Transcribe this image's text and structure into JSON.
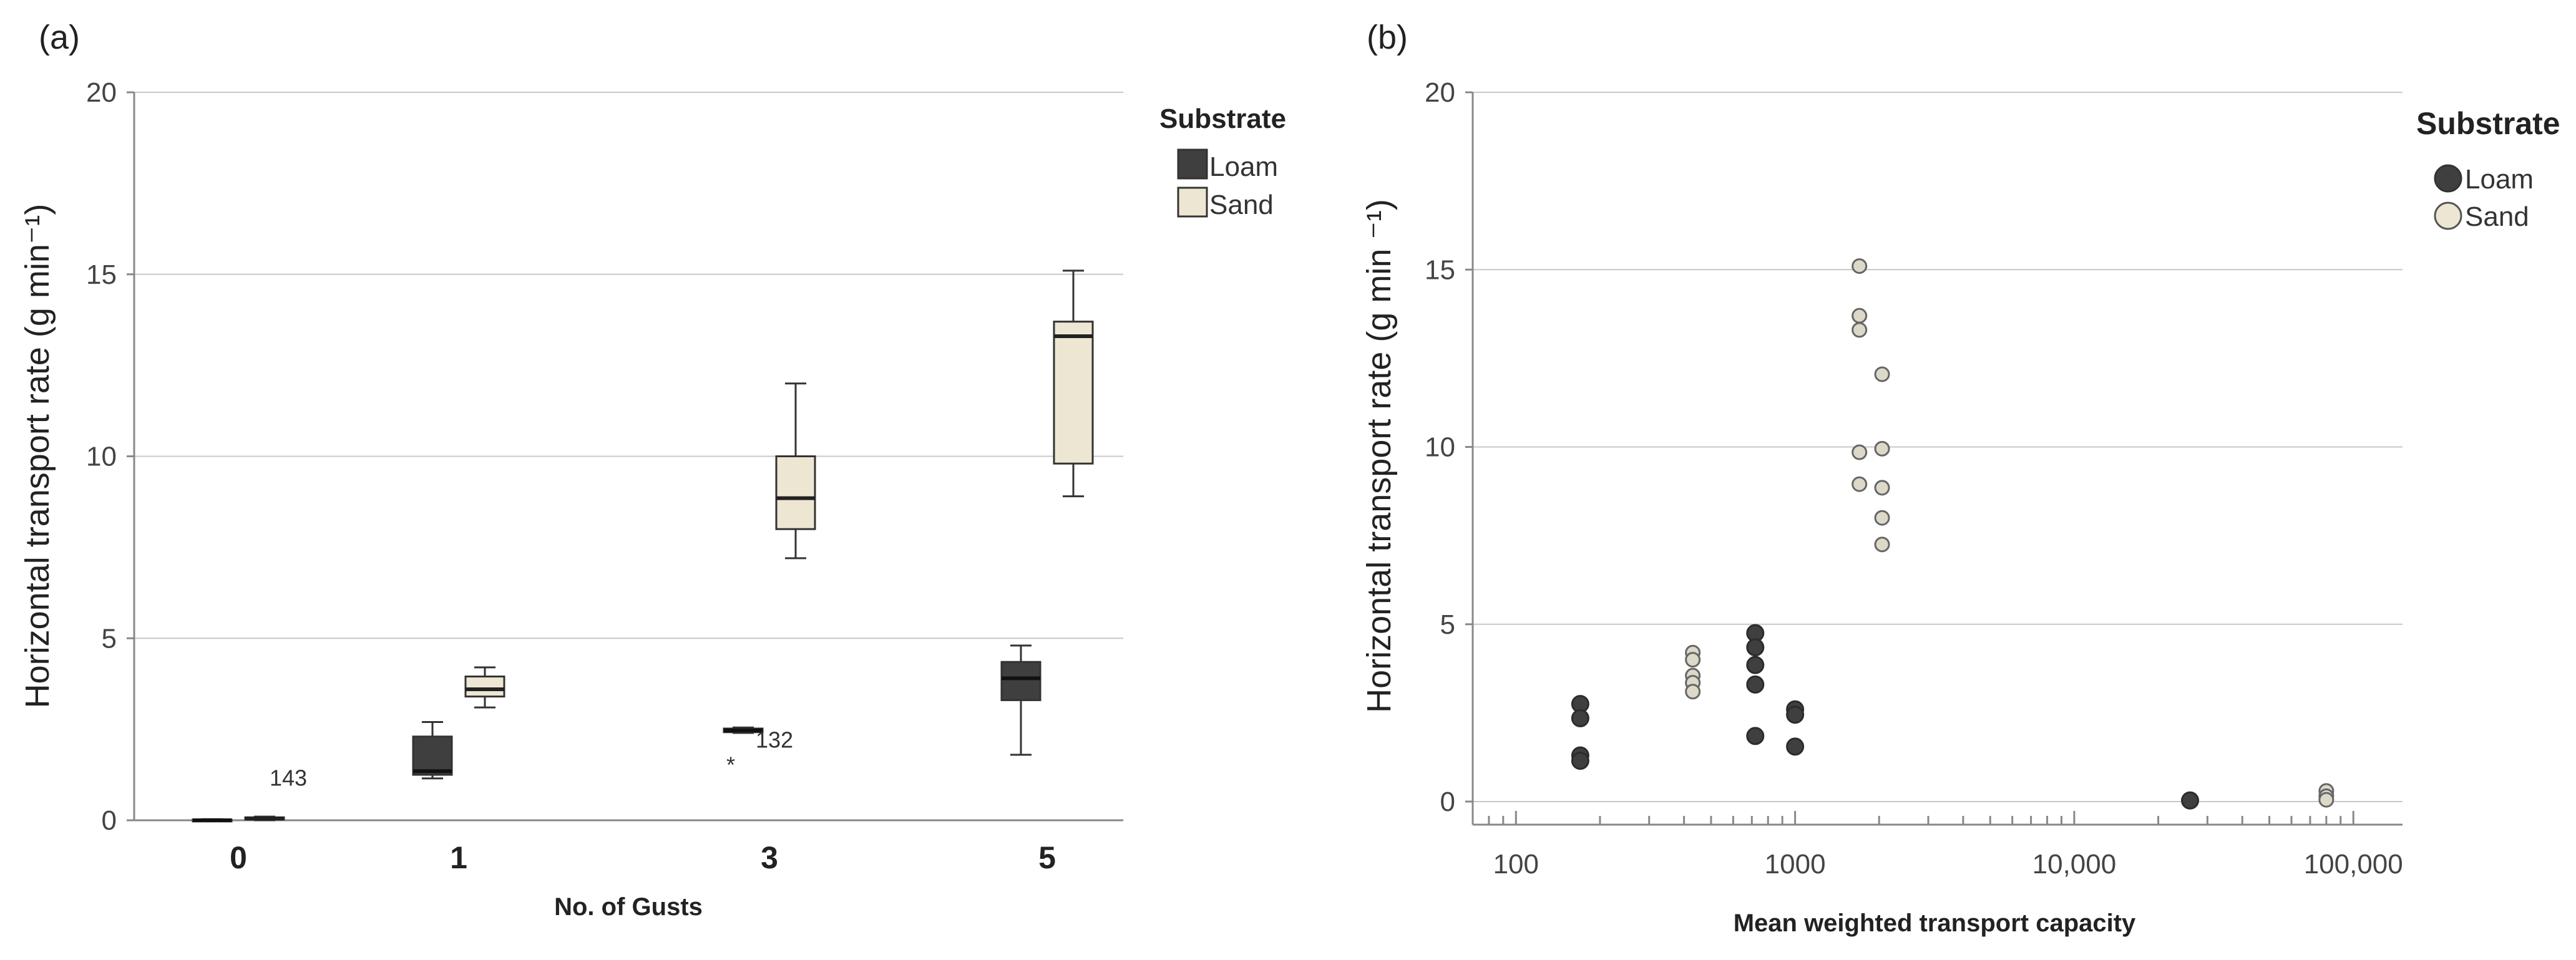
{
  "colors": {
    "loam": "#3f3f3f",
    "sand": "#ede6d2",
    "sand_point": "#ddd9c9",
    "grid": "#c8c8c8",
    "outline": "#333333"
  },
  "chart_data": [
    {
      "type": "box",
      "panel_label": "(a)",
      "xlabel": "No. of Gusts",
      "ylabel": "Horizontal transport rate (g min⁻¹)",
      "categories": [
        "0",
        "1",
        "3",
        "5"
      ],
      "ylim": [
        0,
        20
      ],
      "yticks": [
        0,
        5,
        10,
        15,
        20
      ],
      "legend": {
        "title": "Substrate",
        "position": "top-right",
        "entries": [
          "Loam",
          "Sand"
        ]
      },
      "series": [
        {
          "name": "Loam",
          "boxes": [
            {
              "category": "0",
              "min": 0.0,
              "q1": 0.0,
              "median": 0.0,
              "q3": 0.02,
              "max": 0.03
            },
            {
              "category": "1",
              "min": 1.15,
              "q1": 1.25,
              "median": 1.35,
              "q3": 2.3,
              "max": 2.7
            },
            {
              "category": "3",
              "min": 2.4,
              "q1": 2.42,
              "median": 2.47,
              "q3": 2.52,
              "max": 2.55
            },
            {
              "category": "5",
              "min": 1.8,
              "q1": 3.3,
              "median": 3.9,
              "q3": 4.35,
              "max": 4.8
            }
          ]
        },
        {
          "name": "Sand",
          "boxes": [
            {
              "category": "0",
              "min": 0.0,
              "q1": 0.02,
              "median": 0.05,
              "q3": 0.08,
              "max": 0.1
            },
            {
              "category": "1",
              "min": 3.1,
              "q1": 3.4,
              "median": 3.6,
              "q3": 3.95,
              "max": 4.2
            },
            {
              "category": "3",
              "min": 7.2,
              "q1": 8.0,
              "median": 8.85,
              "q3": 10.0,
              "max": 12.0
            },
            {
              "category": "5",
              "min": 8.9,
              "q1": 9.8,
              "median": 13.3,
              "q3": 13.7,
              "max": 15.1
            }
          ]
        }
      ],
      "outliers": [
        {
          "series": "Sand",
          "category": "0",
          "label": "143",
          "value": 0.05,
          "symbol": ""
        },
        {
          "series": "Loam",
          "category": "3",
          "label": "132",
          "value": 1.55,
          "symbol": "*"
        }
      ]
    },
    {
      "type": "scatter",
      "panel_label": "(b)",
      "xlabel": "Mean weighted transport capacity",
      "ylabel": "Horizontal transport rate (g min ⁻¹)",
      "xscale": "log",
      "xlim": [
        70,
        150000
      ],
      "ylim": [
        0,
        20
      ],
      "yticks": [
        0,
        5,
        10,
        15,
        20
      ],
      "xticks": [
        100,
        1000,
        10000,
        100000
      ],
      "xtick_labels": [
        "100",
        "1000",
        "10,000",
        "100,000"
      ],
      "legend": {
        "title": "Substrate",
        "position": "top-right",
        "entries": [
          "Loam",
          "Sand"
        ]
      },
      "series": [
        {
          "name": "Loam",
          "points": [
            [
              170,
              2.75
            ],
            [
              170,
              2.35
            ],
            [
              170,
              1.3
            ],
            [
              170,
              1.15
            ],
            [
              720,
              4.75
            ],
            [
              720,
              4.35
            ],
            [
              720,
              3.85
            ],
            [
              720,
              3.3
            ],
            [
              720,
              1.85
            ],
            [
              1000,
              2.6
            ],
            [
              1000,
              2.45
            ],
            [
              1000,
              1.55
            ],
            [
              26000,
              0.03
            ]
          ]
        },
        {
          "name": "Sand",
          "points": [
            [
              430,
              4.2
            ],
            [
              430,
              4.0
            ],
            [
              430,
              3.55
            ],
            [
              430,
              3.35
            ],
            [
              430,
              3.1
            ],
            [
              1700,
              15.1
            ],
            [
              1700,
              13.7
            ],
            [
              1700,
              13.3
            ],
            [
              1700,
              9.85
            ],
            [
              1700,
              8.95
            ],
            [
              2050,
              12.05
            ],
            [
              2050,
              9.95
            ],
            [
              2050,
              8.85
            ],
            [
              2050,
              8.0
            ],
            [
              2050,
              7.25
            ],
            [
              80000,
              0.3
            ],
            [
              80000,
              0.15
            ],
            [
              80000,
              0.05
            ]
          ]
        }
      ]
    }
  ]
}
